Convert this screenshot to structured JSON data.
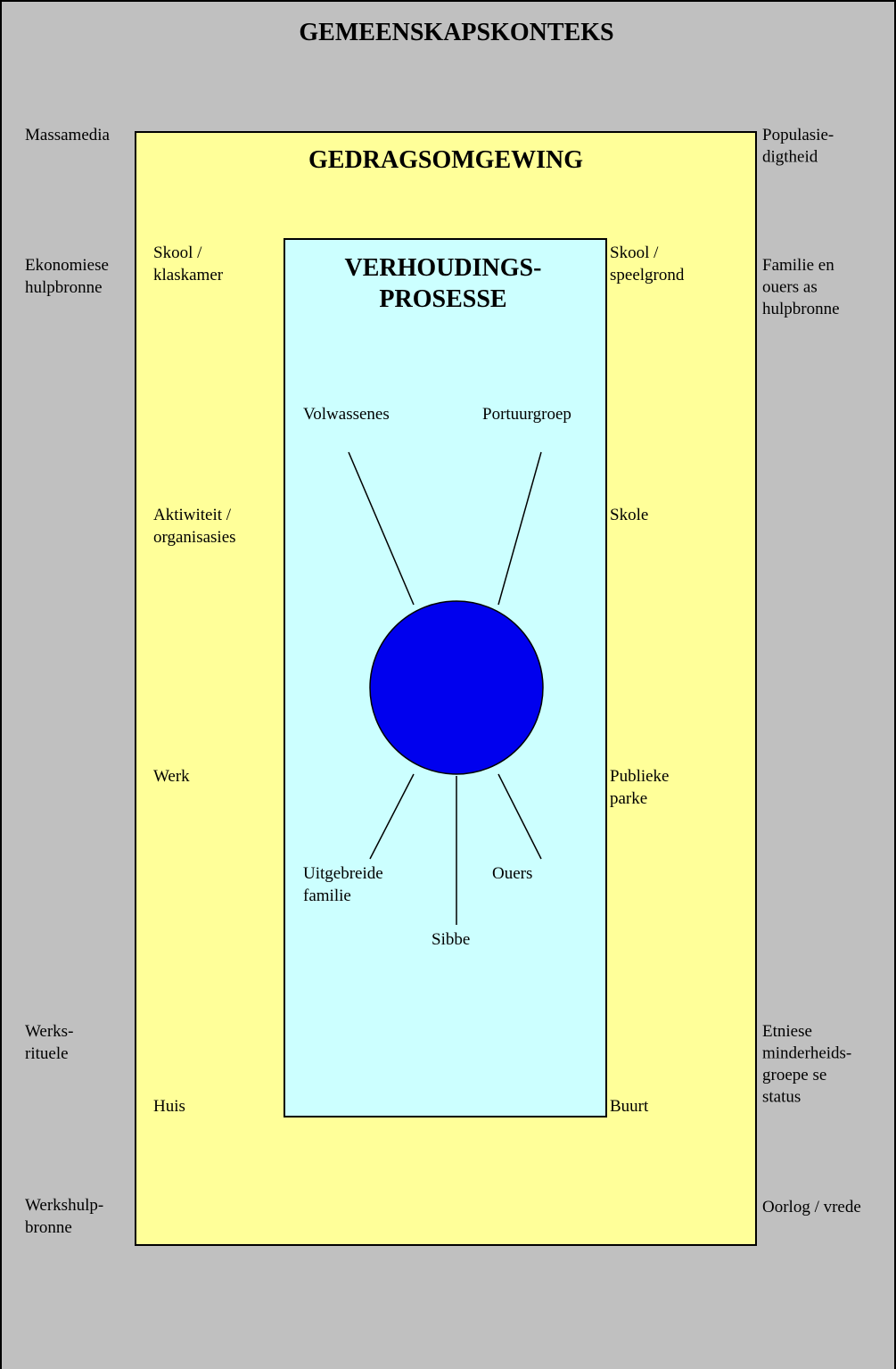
{
  "outer": {
    "title": "GEMEENSKAPSKONTEKS",
    "left_labels": [
      [
        "Massamedia"
      ],
      [
        "Ekonomiese",
        "hulpbronne"
      ],
      [
        "Werks-",
        "rituele"
      ],
      [
        "Werkshulp-",
        "bronne"
      ]
    ],
    "right_labels": [
      [
        "Populasie-",
        "digtheid"
      ],
      [
        "Familie en",
        "ouers as",
        "hulpbronne"
      ],
      [
        "Etniese",
        "minderheids-",
        "groepe se",
        "status"
      ],
      [
        "Oorlog / vrede"
      ]
    ]
  },
  "behavior": {
    "title": "GEDRAGSOMGEWING",
    "left_labels": [
      [
        "Skool /",
        "klaskamer"
      ],
      [
        "Aktiwiteit /",
        "organisasies"
      ],
      [
        "Werk"
      ],
      [
        "Huis"
      ]
    ],
    "right_labels": [
      [
        "Skool /",
        "speelgrond"
      ],
      [
        "Skole"
      ],
      [
        "Publieke",
        "parke"
      ],
      [
        "Buurt"
      ]
    ]
  },
  "relations": {
    "title": [
      "VERHOUDINGS-",
      "PROSESSE"
    ],
    "nodes": [
      [
        "Volwassenes"
      ],
      [
        "Portuurgroep"
      ],
      [
        "Uitgebreide",
        "familie"
      ],
      [
        "Ouers"
      ],
      [
        "Sibbe"
      ]
    ]
  }
}
